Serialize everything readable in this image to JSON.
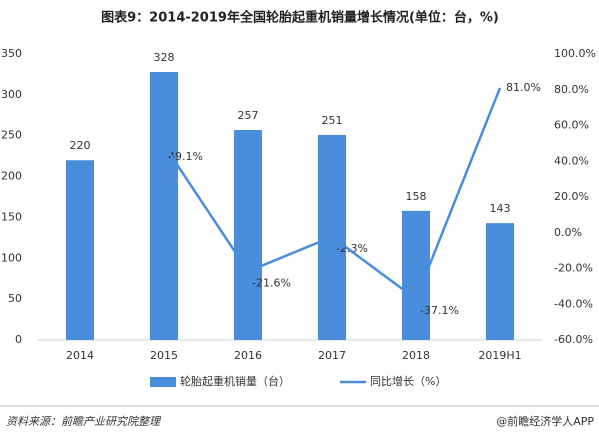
{
  "chart_data": {
    "type": "bar_line",
    "title": "图表9：2014-2019年全国轮胎起重机销量增长情况(单位：台，%)",
    "categories": [
      "2014",
      "2015",
      "2016",
      "2017",
      "2018",
      "2019H1"
    ],
    "series": [
      {
        "name": "轮胎起重机销量（台）",
        "color": "#4a8ddc",
        "values": [
          220,
          328,
          257,
          251,
          158,
          143
        ]
      },
      {
        "name": "同比增长（%）",
        "color": "#4a8ddc",
        "axis": "y2",
        "values": [
          null,
          49.1,
          -21.6,
          -2.3,
          -37.1,
          81.0
        ],
        "value_labels": [
          null,
          "49.1%",
          "-21.6%",
          "-2.3%",
          "-37.1%",
          "81.0%"
        ]
      }
    ],
    "ylim": [
      0,
      350
    ],
    "yticks": [
      0,
      50,
      100,
      150,
      200,
      250,
      300,
      350
    ],
    "y2lim": [
      -60,
      100
    ],
    "y2ticks": [
      {
        "value": -60,
        "label": "-60.0%"
      },
      {
        "value": -40,
        "label": "-40.0%"
      },
      {
        "value": -20,
        "label": "-20.0%"
      },
      {
        "value": 0,
        "label": "0.0%"
      },
      {
        "value": 20,
        "label": "20.0%"
      },
      {
        "value": 40,
        "label": "40.0%"
      },
      {
        "value": 60,
        "label": "60.0%"
      },
      {
        "value": 80,
        "label": "80.0%"
      },
      {
        "value": 100,
        "label": "100.0%"
      }
    ],
    "legend": "bottom",
    "source": "资料来源：前瞻产业研究院整理",
    "credit": "@前瞻经济学人APP"
  }
}
